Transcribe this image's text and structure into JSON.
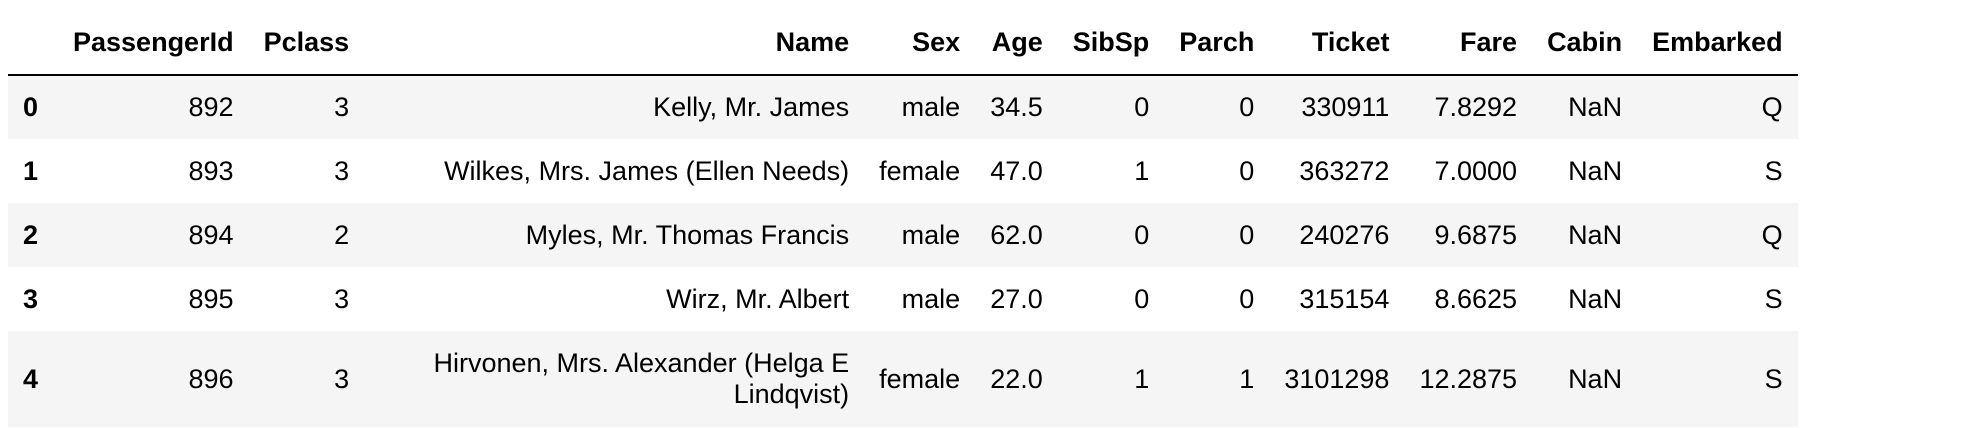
{
  "table": {
    "columns": {
      "index": "",
      "passengerid": "PassengerId",
      "pclass": "Pclass",
      "name": "Name",
      "sex": "Sex",
      "age": "Age",
      "sibsp": "SibSp",
      "parch": "Parch",
      "ticket": "Ticket",
      "fare": "Fare",
      "cabin": "Cabin",
      "embarked": "Embarked"
    },
    "rows": [
      {
        "index": "0",
        "passengerid": "892",
        "pclass": "3",
        "name": "Kelly, Mr. James",
        "sex": "male",
        "age": "34.5",
        "sibsp": "0",
        "parch": "0",
        "ticket": "330911",
        "fare": "7.8292",
        "cabin": "NaN",
        "embarked": "Q"
      },
      {
        "index": "1",
        "passengerid": "893",
        "pclass": "3",
        "name": "Wilkes, Mrs. James (Ellen Needs)",
        "sex": "female",
        "age": "47.0",
        "sibsp": "1",
        "parch": "0",
        "ticket": "363272",
        "fare": "7.0000",
        "cabin": "NaN",
        "embarked": "S"
      },
      {
        "index": "2",
        "passengerid": "894",
        "pclass": "2",
        "name": "Myles, Mr. Thomas Francis",
        "sex": "male",
        "age": "62.0",
        "sibsp": "0",
        "parch": "0",
        "ticket": "240276",
        "fare": "9.6875",
        "cabin": "NaN",
        "embarked": "Q"
      },
      {
        "index": "3",
        "passengerid": "895",
        "pclass": "3",
        "name": "Wirz, Mr. Albert",
        "sex": "male",
        "age": "27.0",
        "sibsp": "0",
        "parch": "0",
        "ticket": "315154",
        "fare": "8.6625",
        "cabin": "NaN",
        "embarked": "S"
      },
      {
        "index": "4",
        "passengerid": "896",
        "pclass": "3",
        "name": "Hirvonen, Mrs. Alexander (Helga E Lindqvist)",
        "sex": "female",
        "age": "22.0",
        "sibsp": "1",
        "parch": "1",
        "ticket": "3101298",
        "fare": "12.2875",
        "cabin": "NaN",
        "embarked": "S"
      }
    ]
  },
  "colors": {
    "stripe": "#f5f5f5",
    "background": "#ffffff",
    "text": "#000000",
    "header_rule": "#000000"
  }
}
